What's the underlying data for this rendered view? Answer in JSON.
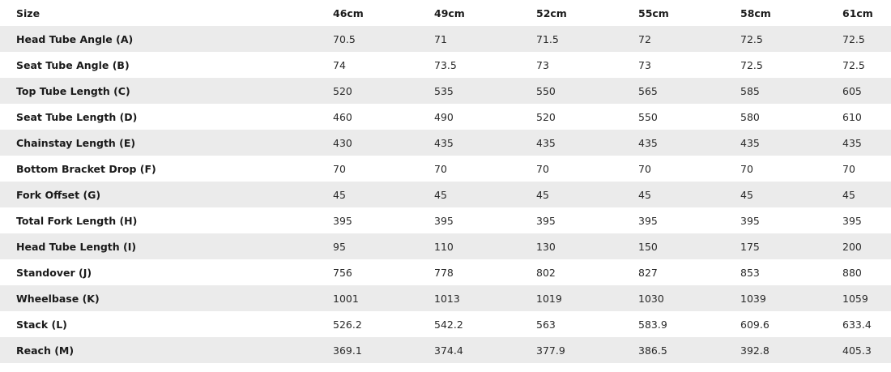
{
  "table": {
    "header_label": "Size",
    "sizes": [
      "46cm",
      "49cm",
      "52cm",
      "55cm",
      "58cm",
      "61cm"
    ],
    "rows": [
      {
        "label": "Head Tube Angle (A)",
        "values": [
          "70.5",
          "71",
          "71.5",
          "72",
          "72.5",
          "72.5"
        ]
      },
      {
        "label": "Seat Tube Angle (B)",
        "values": [
          "74",
          "73.5",
          "73",
          "73",
          "72.5",
          "72.5"
        ]
      },
      {
        "label": "Top Tube Length (C)",
        "values": [
          "520",
          "535",
          "550",
          "565",
          "585",
          "605"
        ]
      },
      {
        "label": "Seat Tube Length (D)",
        "values": [
          "460",
          "490",
          "520",
          "550",
          "580",
          "610"
        ]
      },
      {
        "label": "Chainstay Length (E)",
        "values": [
          "430",
          "435",
          "435",
          "435",
          "435",
          "435"
        ]
      },
      {
        "label": "Bottom Bracket Drop (F)",
        "values": [
          "70",
          "70",
          "70",
          "70",
          "70",
          "70"
        ]
      },
      {
        "label": "Fork Offset (G)",
        "values": [
          "45",
          "45",
          "45",
          "45",
          "45",
          "45"
        ]
      },
      {
        "label": "Total Fork Length (H)",
        "values": [
          "395",
          "395",
          "395",
          "395",
          "395",
          "395"
        ]
      },
      {
        "label": "Head Tube Length (I)",
        "values": [
          "95",
          "110",
          "130",
          "150",
          "175",
          "200"
        ]
      },
      {
        "label": "Standover (J)",
        "values": [
          "756",
          "778",
          "802",
          "827",
          "853",
          "880"
        ]
      },
      {
        "label": "Wheelbase (K)",
        "values": [
          "1001",
          "1013",
          "1019",
          "1030",
          "1039",
          "1059"
        ]
      },
      {
        "label": "Stack (L)",
        "values": [
          "526.2",
          "542.2",
          "563",
          "583.9",
          "609.6",
          "633.4"
        ]
      },
      {
        "label": "Reach (M)",
        "values": [
          "369.1",
          "374.4",
          "377.9",
          "386.5",
          "392.8",
          "405.3"
        ]
      }
    ]
  }
}
